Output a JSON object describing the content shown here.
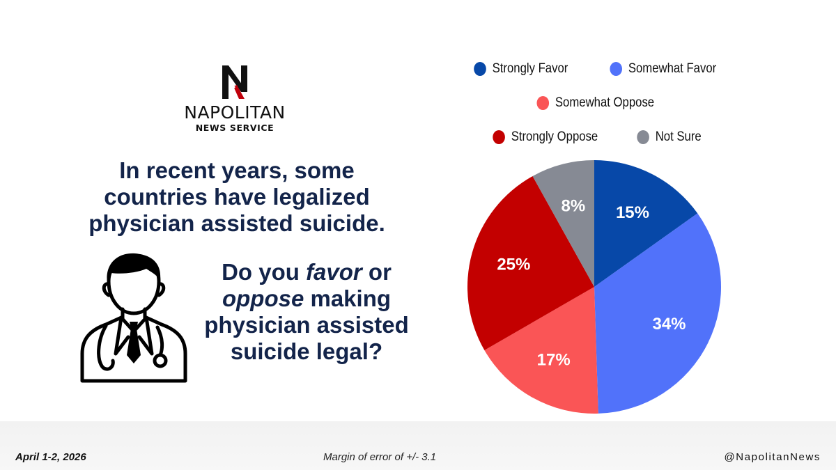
{
  "brand": {
    "name": "NAPOLITAN",
    "subtitle": "NEWS SERVICE",
    "logo_letter": "N",
    "colors": {
      "dark": "#111111",
      "accent": "#c0000b"
    }
  },
  "headline": "In recent years, some countries have legalized physician assisted suicide.",
  "question": {
    "p1": "Do you ",
    "favor": "favor",
    "p2": " or",
    "oppose": "oppose",
    "p3": " making physician assisted suicide legal?"
  },
  "illustration": {
    "icon": "doctor-icon"
  },
  "chart_data": {
    "type": "pie",
    "start_angle_deg": 0,
    "direction": "clockwise",
    "slices": [
      {
        "label": "Strongly Favor",
        "value": 15,
        "display": "15%",
        "color": "#0748a8"
      },
      {
        "label": "Somewhat Favor",
        "value": 34,
        "display": "34%",
        "color": "#5172fa"
      },
      {
        "label": "Somewhat Oppose",
        "value": 17,
        "display": "17%",
        "color": "#fa5556"
      },
      {
        "label": "Strongly Oppose",
        "value": 25,
        "display": "25%",
        "color": "#c30000"
      },
      {
        "label": "Not Sure",
        "value": 8,
        "display": "8%",
        "color": "#868a94"
      }
    ],
    "legend_placement": "top"
  },
  "legend_rows": [
    [
      0,
      1
    ],
    [
      2
    ],
    [
      3,
      4
    ]
  ],
  "footer": {
    "date": "April 1-2, 2026",
    "margin": "Margin of error of +/- 3.1",
    "handle": "@NapolitanNews"
  }
}
